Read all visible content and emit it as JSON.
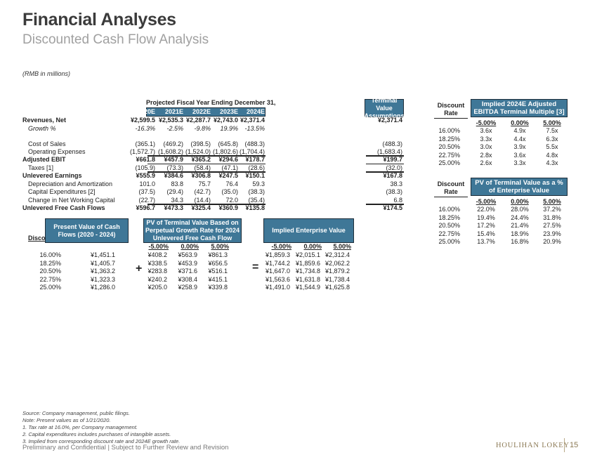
{
  "header": {
    "title": "Financial Analyses",
    "subtitle": "Discounted Cash Flow Analysis",
    "units": "(RMB in millions)"
  },
  "projection": {
    "title": "Projected Fiscal Year Ending December 31,",
    "years": [
      "2020E",
      "2021E",
      "2022E",
      "2023E",
      "2024E"
    ],
    "terminal_header": "Terminal Value Assumptions",
    "rows": [
      {
        "label": "Revenues, Net",
        "values": [
          "¥2,599.5",
          "¥2,535.3",
          "¥2,287.7",
          "¥2,743.0",
          "¥2,371.4"
        ],
        "terminal": "¥2,371.4",
        "style": "b",
        "indent": 0
      },
      {
        "label": "Growth %",
        "values": [
          "-16.3%",
          "-2.5%",
          "-9.8%",
          "19.9%",
          "-13.5%"
        ],
        "terminal": "",
        "style": "i",
        "indent": 1
      },
      {
        "label": "Cost of Sales",
        "values": [
          "(365.1)",
          "(469.2)",
          "(398.5)",
          "(645.8)",
          "(488.3)"
        ],
        "terminal": "(488.3)",
        "style": "",
        "indent": 1
      },
      {
        "label": "Operating Expenses",
        "values": [
          "(1,572.7)",
          "(1,608.2)",
          "(1,524.0)",
          "(1,802.6)",
          "(1,704.4)"
        ],
        "terminal": "(1,683.4)",
        "style": "",
        "indent": 1
      },
      {
        "label": "Adjusted EBIT",
        "values": [
          "¥661.8",
          "¥457.9",
          "¥365.2",
          "¥294.6",
          "¥178.7"
        ],
        "terminal": "¥199.7",
        "style": "b",
        "indent": 0
      },
      {
        "label": "Taxes [1]",
        "values": [
          "(105.9)",
          "(73.3)",
          "(58.4)",
          "(47.1)",
          "(28.6)"
        ],
        "terminal": "(32.0)",
        "style": "",
        "indent": 1
      },
      {
        "label": "Unlevered Earnings",
        "values": [
          "¥555.9",
          "¥384.6",
          "¥306.8",
          "¥247.5",
          "¥150.1"
        ],
        "terminal": "¥167.8",
        "style": "b",
        "indent": 0
      },
      {
        "label": "Depreciation and Amortization",
        "values": [
          "101.0",
          "83.8",
          "75.7",
          "76.4",
          "59.3"
        ],
        "terminal": "38.3",
        "style": "",
        "indent": 1
      },
      {
        "label": "Capital Expenditures [2]",
        "values": [
          "(37.5)",
          "(29.4)",
          "(42.7)",
          "(35.0)",
          "(38.3)"
        ],
        "terminal": "(38.3)",
        "style": "",
        "indent": 1
      },
      {
        "label": "Change in Net Working Capital",
        "values": [
          "(22.7)",
          "34.3",
          "(14.4)",
          "72.0",
          "(35.4)"
        ],
        "terminal": "6.8",
        "style": "",
        "indent": 1
      },
      {
        "label": "Unlevered Free Cash Flows",
        "values": [
          "¥596.7",
          "¥473.3",
          "¥325.4",
          "¥360.9",
          "¥135.8"
        ],
        "terminal": "¥174.5",
        "style": "b",
        "indent": 0
      }
    ]
  },
  "multiple_table": {
    "rate_header": "Discount Rate",
    "header": "Implied 2024E Adjusted EBITDA Terminal Multiple [3]",
    "cols": [
      "-5.00%",
      "0.00%",
      "5.00%"
    ],
    "rates": [
      "16.00%",
      "18.25%",
      "20.50%",
      "22.75%",
      "25.00%"
    ],
    "rows": [
      [
        "3.6x",
        "4.9x",
        "7.5x"
      ],
      [
        "3.3x",
        "4.4x",
        "6.3x"
      ],
      [
        "3.0x",
        "3.9x",
        "5.5x"
      ],
      [
        "2.8x",
        "3.6x",
        "4.8x"
      ],
      [
        "2.6x",
        "3.3x",
        "4.3x"
      ]
    ]
  },
  "pct_table": {
    "rate_header": "Discount Rate",
    "header": "PV of Terminal Value as a % of Enterprise Value",
    "cols": [
      "-5.00%",
      "0.00%",
      "5.00%"
    ],
    "rates": [
      "16.00%",
      "18.25%",
      "20.50%",
      "22.75%",
      "25.00%"
    ],
    "rows": [
      [
        "22.0%",
        "28.0%",
        "37.2%"
      ],
      [
        "19.4%",
        "24.4%",
        "31.8%"
      ],
      [
        "17.2%",
        "21.4%",
        "27.5%"
      ],
      [
        "15.4%",
        "18.9%",
        "23.9%"
      ],
      [
        "13.7%",
        "16.8%",
        "20.9%"
      ]
    ]
  },
  "valuation": {
    "rate_header": "Discount Rate",
    "pv_header": "Present Value of Cash Flows (2020 - 2024)",
    "tv_header": "PV of Terminal Value Based on Perpetual Growth Rate for 2024 Unlevered Free Cash Flow",
    "ev_header": "Implied Enterprise Value",
    "cols": [
      "-5.00%",
      "0.00%",
      "5.00%"
    ],
    "plus": "+",
    "equals": "=",
    "rates": [
      "16.00%",
      "18.25%",
      "20.50%",
      "22.75%",
      "25.00%"
    ],
    "pv": [
      "¥1,451.1",
      "¥1,405.7",
      "¥1,363.2",
      "¥1,323.3",
      "¥1,286.0"
    ],
    "tv": [
      [
        "¥408.2",
        "¥563.9",
        "¥861.3"
      ],
      [
        "¥338.5",
        "¥453.9",
        "¥656.5"
      ],
      [
        "¥283.8",
        "¥371.6",
        "¥516.1"
      ],
      [
        "¥240.2",
        "¥308.4",
        "¥415.1"
      ],
      [
        "¥205.0",
        "¥258.9",
        "¥339.8"
      ]
    ],
    "ev": [
      [
        "¥1,859.3",
        "¥2,015.1",
        "¥2,312.4"
      ],
      [
        "¥1,744.2",
        "¥1,859.6",
        "¥2,062.2"
      ],
      [
        "¥1,647.0",
        "¥1,734.8",
        "¥1,879.2"
      ],
      [
        "¥1,563.6",
        "¥1,631.8",
        "¥1,738.4"
      ],
      [
        "¥1,491.0",
        "¥1,544.9",
        "¥1,625.8"
      ]
    ]
  },
  "footnotes": [
    "Source: Company management, public filings.",
    "Note: Present values as of 1/21/2020.",
    "1.  Tax rate at 16.0%, per Company management.",
    "2.  Capital expenditures includes purchases of intangible assets.",
    "3.  Implied from corresponding discount rate and 2024E growth rate."
  ],
  "footer": {
    "confidential": "Preliminary and Confidential | Subject to Further Review and Revision",
    "logo": "HOULIHAN LOKEY",
    "page": "15"
  },
  "colors": {
    "header_fill": "#3f7797",
    "title": "#3b3b3b",
    "subtitle": "#a0a0a0"
  }
}
